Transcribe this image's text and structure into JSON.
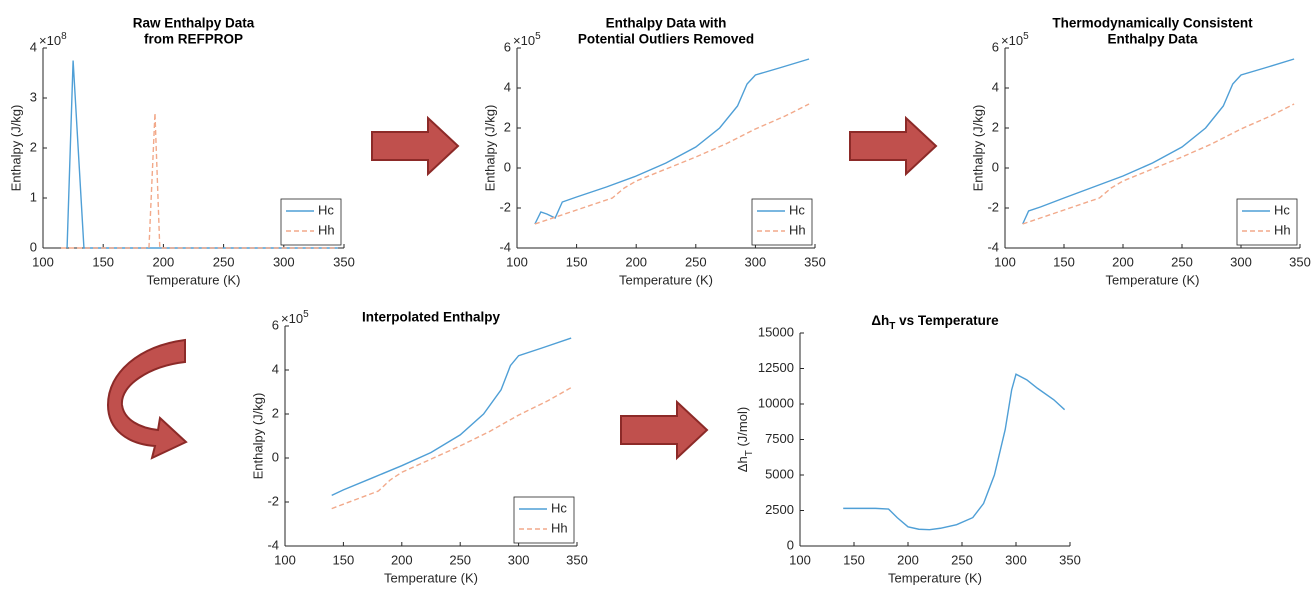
{
  "chart_data": [
    {
      "type": "line",
      "title": [
        "Raw Enthalpy Data",
        "from REFPROP"
      ],
      "xlabel": "Temperature (K)",
      "ylabel": "Enthalpy (J/kg)",
      "y_scale": "×10",
      "y_scale_exponent": "8",
      "xlim": [
        100,
        350
      ],
      "xticks": [
        100,
        150,
        200,
        250,
        300,
        350
      ],
      "ylim": [
        0,
        4
      ],
      "yticks": [
        0,
        1,
        2,
        3,
        4
      ],
      "legend": "lower right",
      "series": [
        {
          "name": "Hc",
          "color": "#4f9fd6",
          "linestyle": "solid",
          "x": [
            120,
            125,
            134,
            345
          ],
          "values": [
            0,
            3.75,
            0,
            0
          ]
        },
        {
          "name": "Hh",
          "color": "#f2a98a",
          "linestyle": "dashed",
          "x": [
            115,
            188,
            193,
            197,
            345
          ],
          "values": [
            0,
            0,
            2.7,
            0,
            0
          ]
        }
      ]
    },
    {
      "type": "line",
      "title": [
        "Enthalpy Data with",
        "Potential Outliers Removed"
      ],
      "xlabel": "Temperature (K)",
      "ylabel": "Enthalpy (J/kg)",
      "y_scale": "×10",
      "y_scale_exponent": "5",
      "xlim": [
        100,
        350
      ],
      "xticks": [
        100,
        150,
        200,
        250,
        300,
        350
      ],
      "ylim": [
        -4,
        6
      ],
      "yticks": [
        -4,
        -2,
        0,
        2,
        4,
        6
      ],
      "legend": "lower right",
      "series": [
        {
          "name": "Hc",
          "color": "#4f9fd6",
          "linestyle": "solid",
          "x": [
            115,
            120,
            125,
            132,
            138,
            150,
            175,
            200,
            225,
            250,
            270,
            285,
            293,
            300,
            320,
            345
          ],
          "values": [
            -2.8,
            -2.2,
            -2.3,
            -2.5,
            -1.7,
            -1.45,
            -0.95,
            -0.4,
            0.25,
            1.05,
            2.0,
            3.1,
            4.2,
            4.65,
            5.0,
            5.45
          ]
        },
        {
          "name": "Hh",
          "color": "#f2a98a",
          "linestyle": "dashed",
          "x": [
            115,
            150,
            180,
            190,
            200,
            225,
            250,
            275,
            300,
            325,
            345
          ],
          "values": [
            -2.8,
            -2.1,
            -1.5,
            -1.0,
            -0.65,
            -0.05,
            0.55,
            1.2,
            1.95,
            2.6,
            3.2
          ]
        }
      ]
    },
    {
      "type": "line",
      "title": [
        "Thermodynamically Consistent",
        "Enthalpy Data"
      ],
      "xlabel": "Temperature (K)",
      "ylabel": "Enthalpy (J/kg)",
      "y_scale": "×10",
      "y_scale_exponent": "5",
      "xlim": [
        100,
        350
      ],
      "xticks": [
        100,
        150,
        200,
        250,
        300,
        350
      ],
      "ylim": [
        -4,
        6
      ],
      "yticks": [
        -4,
        -2,
        0,
        2,
        4,
        6
      ],
      "legend": "lower right",
      "series": [
        {
          "name": "Hc",
          "color": "#4f9fd6",
          "linestyle": "solid",
          "x": [
            115,
            120,
            130,
            150,
            175,
            200,
            225,
            250,
            270,
            285,
            293,
            300,
            320,
            345
          ],
          "values": [
            -2.8,
            -2.15,
            -1.95,
            -1.5,
            -0.95,
            -0.4,
            0.25,
            1.05,
            2.0,
            3.1,
            4.2,
            4.65,
            5.0,
            5.45
          ]
        },
        {
          "name": "Hh",
          "color": "#f2a98a",
          "linestyle": "dashed",
          "x": [
            115,
            150,
            180,
            190,
            200,
            225,
            250,
            275,
            300,
            325,
            345
          ],
          "values": [
            -2.8,
            -2.1,
            -1.5,
            -1.0,
            -0.65,
            -0.05,
            0.55,
            1.2,
            1.95,
            2.6,
            3.2
          ]
        }
      ]
    },
    {
      "type": "line",
      "title": [
        "Interpolated Enthalpy"
      ],
      "xlabel": "Temperature (K)",
      "ylabel": "Enthalpy (J/kg)",
      "y_scale": "×10",
      "y_scale_exponent": "5",
      "xlim": [
        100,
        350
      ],
      "xticks": [
        100,
        150,
        200,
        250,
        300,
        350
      ],
      "ylim": [
        -4,
        6
      ],
      "yticks": [
        -4,
        -2,
        0,
        2,
        4,
        6
      ],
      "legend": "lower right",
      "series": [
        {
          "name": "Hc",
          "color": "#4f9fd6",
          "linestyle": "solid",
          "x": [
            140,
            150,
            175,
            200,
            225,
            250,
            270,
            285,
            293,
            300,
            320,
            345
          ],
          "values": [
            -1.7,
            -1.45,
            -0.9,
            -0.35,
            0.25,
            1.05,
            2.0,
            3.1,
            4.2,
            4.65,
            5.0,
            5.45
          ]
        },
        {
          "name": "Hh",
          "color": "#f2a98a",
          "linestyle": "dashed",
          "x": [
            140,
            150,
            180,
            190,
            200,
            225,
            250,
            275,
            300,
            325,
            345
          ],
          "values": [
            -2.3,
            -2.1,
            -1.5,
            -1.0,
            -0.65,
            -0.05,
            0.55,
            1.2,
            1.95,
            2.6,
            3.2
          ]
        }
      ]
    },
    {
      "type": "line",
      "title_parts": [
        "Δh",
        "T",
        " vs Temperature"
      ],
      "xlabel": "Temperature (K)",
      "ylabel_parts": [
        "Δh",
        "T",
        " (J/mol)"
      ],
      "xlim": [
        100,
        350
      ],
      "xticks": [
        100,
        150,
        200,
        250,
        300,
        350
      ],
      "ylim": [
        0,
        15000
      ],
      "yticks": [
        0,
        2500,
        5000,
        7500,
        10000,
        12500,
        15000
      ],
      "series": [
        {
          "color": "#4f9fd6",
          "linestyle": "solid",
          "x": [
            140,
            170,
            182,
            190,
            200,
            210,
            220,
            230,
            245,
            260,
            270,
            280,
            290,
            296,
            300,
            310,
            320,
            335,
            345
          ],
          "values": [
            2650,
            2650,
            2600,
            2000,
            1350,
            1180,
            1150,
            1250,
            1500,
            2000,
            3000,
            5000,
            8200,
            11000,
            12100,
            11700,
            11100,
            10300,
            9600
          ]
        }
      ]
    }
  ]
}
